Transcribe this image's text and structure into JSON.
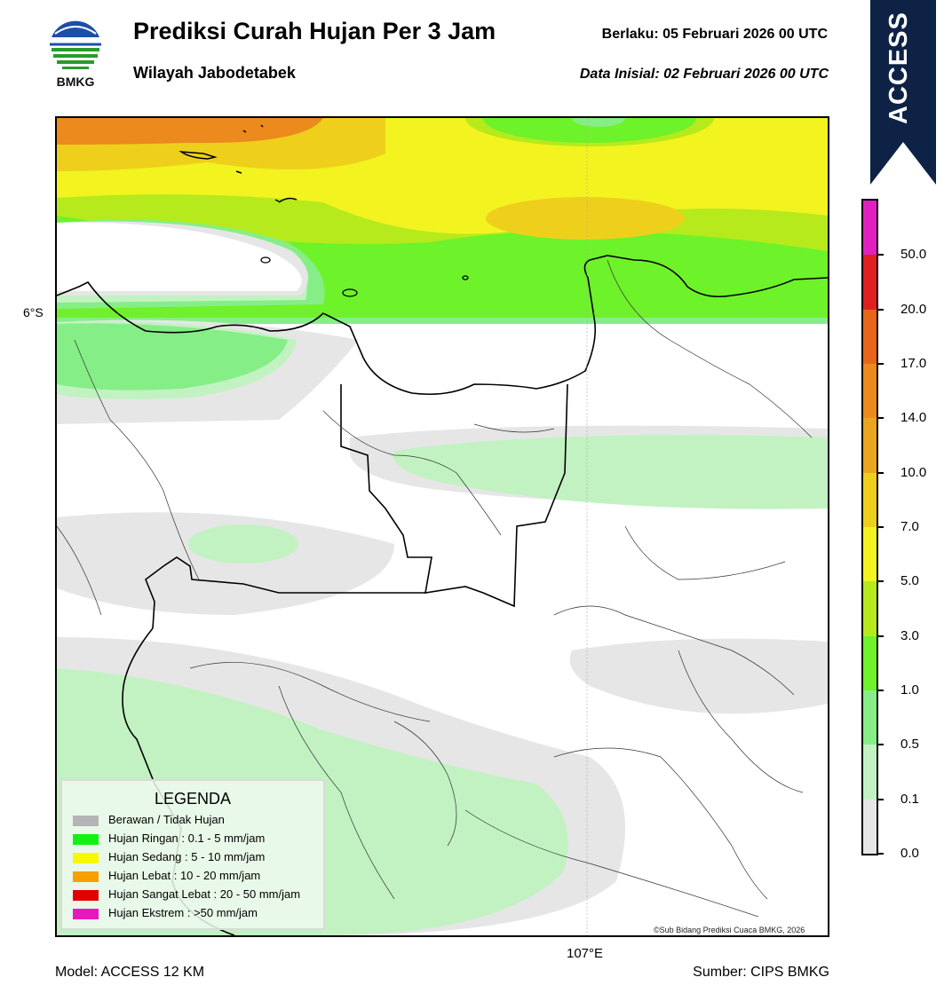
{
  "header": {
    "title": "Prediksi Curah Hujan Per 3 Jam",
    "subtitle": "Wilayah Jabodetabek",
    "valid": "Berlaku:  05 Februari 2026 00 UTC",
    "init": "Data Inisial:  02 Februari 2026 00 UTC"
  },
  "logo": {
    "text": "BMKG",
    "icon": "bmkg-logo"
  },
  "ribbon": {
    "text": "ACCESS",
    "color": "#0d2245"
  },
  "map": {
    "lat_label": "6°S",
    "lon_label": "107°E",
    "copyright": "©Sub Bidang Prediksi Cuaca BMKG, 2026"
  },
  "footer": {
    "model": "Model: ACCESS 12 KM",
    "source": "Sumber: CIPS BMKG"
  },
  "colorbar": {
    "ticks": [
      "50.0",
      "20.0",
      "17.0",
      "14.0",
      "10.0",
      "7.0",
      "5.0",
      "3.0",
      "1.0",
      "0.5",
      "0.1",
      "0.0"
    ],
    "colors": [
      "#e020c0",
      "#e02020",
      "#e8661a",
      "#ec8a1e",
      "#eaa51c",
      "#eed01c",
      "#f3f320",
      "#b6ea1c",
      "#6ef22a",
      "#86ee86",
      "#c2f2c2",
      "#e6e6e6"
    ]
  },
  "legend": {
    "title": "LEGENDA",
    "items": [
      {
        "label": "Berawan / Tidak Hujan",
        "color": "#b4b4b4"
      },
      {
        "label": "Hujan Ringan : 0.1 - 5 mm/jam",
        "color": "#12f212"
      },
      {
        "label": "Hujan Sedang : 5 - 10 mm/jam",
        "color": "#f8f800"
      },
      {
        "label": "Hujan Lebat : 10 - 20 mm/jam",
        "color": "#f8a000"
      },
      {
        "label": "Hujan Sangat Lebat : 20 - 50 mm/jam",
        "color": "#e00000"
      },
      {
        "label": "Hujan Ekstrem : >50 mm/jam",
        "color": "#e818c0"
      }
    ]
  }
}
